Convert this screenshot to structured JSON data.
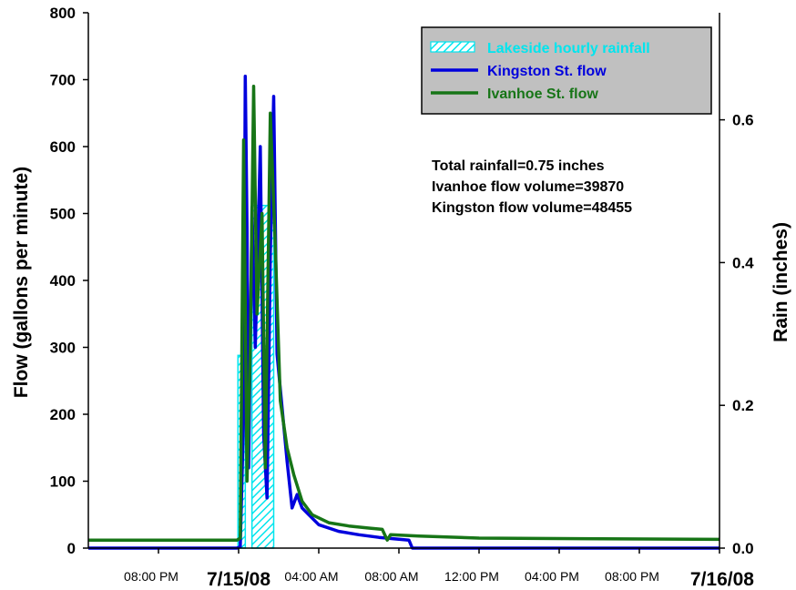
{
  "chart_data": {
    "type": "line",
    "title": "",
    "ylabel": "Flow (gallons per minute)",
    "y2label": "Rain (inches)",
    "ylim": [
      0,
      800
    ],
    "y2lim": [
      0,
      0.75
    ],
    "yticks": [
      "0",
      "100",
      "200",
      "300",
      "400",
      "500",
      "600",
      "700",
      "800"
    ],
    "y2ticks": [
      "0.0",
      "0.2",
      "0.4",
      "0.6"
    ],
    "xlim": [
      "2008-07-15T16:30",
      "2008-07-17T00:00"
    ],
    "xticks": [
      {
        "x": "2008-07-15T20:00",
        "label": "08:00 PM",
        "date": ""
      },
      {
        "x": "2008-07-16T00:00",
        "label": "",
        "date": "7/15/08"
      },
      {
        "x": "2008-07-16T04:00",
        "label": "04:00 AM",
        "date": ""
      },
      {
        "x": "2008-07-16T08:00",
        "label": "08:00 AM",
        "date": ""
      },
      {
        "x": "2008-07-16T12:00",
        "label": "12:00 PM",
        "date": ""
      },
      {
        "x": "2008-07-16T16:00",
        "label": "04:00 PM",
        "date": ""
      },
      {
        "x": "2008-07-16T20:00",
        "label": "08:00 PM",
        "date": ""
      },
      {
        "x": "2008-07-17T00:00",
        "label": "",
        "date": "7/16/08"
      }
    ],
    "legend": {
      "placement": "top-right",
      "background": "#c0c0c0",
      "entries": [
        {
          "name": "Lakeside hourly rainfall",
          "color": "#00e5ee",
          "kind": "hatched-bar"
        },
        {
          "name": "Kingston St. flow",
          "color": "#0000dd",
          "kind": "line"
        },
        {
          "name": "Ivanhoe St. flow",
          "color": "#177517",
          "kind": "line"
        }
      ]
    },
    "annotations": [
      "Total rainfall=0.75 inches",
      "Ivanhoe flow volume=39870",
      "Kingston flow volume=48455"
    ],
    "rainfall": {
      "name": "Lakeside hourly rainfall",
      "axis": "y2",
      "color": "#00e5ee",
      "bars": [
        {
          "start": "2008-07-15T23:58",
          "end": "2008-07-16T00:20",
          "value": 0.27
        },
        {
          "start": "2008-07-16T00:20",
          "end": "2008-07-16T00:40",
          "value": 0.0
        },
        {
          "start": "2008-07-16T00:40",
          "end": "2008-07-16T01:45",
          "value": 0.48
        }
      ]
    },
    "series": [
      {
        "name": "Kingston St. flow",
        "axis": "y",
        "color": "#0000dd",
        "points": [
          [
            "2008-07-15T16:30",
            0
          ],
          [
            "2008-07-15T23:55",
            0
          ],
          [
            "2008-07-16T00:05",
            2
          ],
          [
            "2008-07-16T00:15",
            200
          ],
          [
            "2008-07-16T00:20",
            705
          ],
          [
            "2008-07-16T00:25",
            480
          ],
          [
            "2008-07-16T00:30",
            120
          ],
          [
            "2008-07-16T00:40",
            510
          ],
          [
            "2008-07-16T00:50",
            300
          ],
          [
            "2008-07-16T01:05",
            600
          ],
          [
            "2008-07-16T01:15",
            170
          ],
          [
            "2008-07-16T01:25",
            75
          ],
          [
            "2008-07-16T01:35",
            440
          ],
          [
            "2008-07-16T01:45",
            675
          ],
          [
            "2008-07-16T01:55",
            290
          ],
          [
            "2008-07-16T02:10",
            210
          ],
          [
            "2008-07-16T02:25",
            130
          ],
          [
            "2008-07-16T02:40",
            60
          ],
          [
            "2008-07-16T02:55",
            80
          ],
          [
            "2008-07-16T03:10",
            60
          ],
          [
            "2008-07-16T03:30",
            50
          ],
          [
            "2008-07-16T04:00",
            35
          ],
          [
            "2008-07-16T05:00",
            25
          ],
          [
            "2008-07-16T06:00",
            20
          ],
          [
            "2008-07-16T07:00",
            16
          ],
          [
            "2008-07-16T08:30",
            12
          ],
          [
            "2008-07-16T08:40",
            0
          ],
          [
            "2008-07-17T00:00",
            0
          ]
        ]
      },
      {
        "name": "Ivanhoe St. flow",
        "axis": "y",
        "color": "#177517",
        "points": [
          [
            "2008-07-15T16:30",
            12
          ],
          [
            "2008-07-15T23:55",
            12
          ],
          [
            "2008-07-16T00:05",
            15
          ],
          [
            "2008-07-16T00:15",
            610
          ],
          [
            "2008-07-16T00:25",
            100
          ],
          [
            "2008-07-16T00:35",
            300
          ],
          [
            "2008-07-16T00:45",
            690
          ],
          [
            "2008-07-16T00:55",
            350
          ],
          [
            "2008-07-16T01:10",
            500
          ],
          [
            "2008-07-16T01:20",
            120
          ],
          [
            "2008-07-16T01:35",
            650
          ],
          [
            "2008-07-16T01:50",
            450
          ],
          [
            "2008-07-16T02:05",
            220
          ],
          [
            "2008-07-16T02:25",
            150
          ],
          [
            "2008-07-16T02:45",
            110
          ],
          [
            "2008-07-16T03:10",
            70
          ],
          [
            "2008-07-16T03:40",
            50
          ],
          [
            "2008-07-16T04:30",
            38
          ],
          [
            "2008-07-16T05:30",
            33
          ],
          [
            "2008-07-16T06:30",
            30
          ],
          [
            "2008-07-16T07:10",
            28
          ],
          [
            "2008-07-16T07:25",
            12
          ],
          [
            "2008-07-16T07:35",
            20
          ],
          [
            "2008-07-16T09:00",
            18
          ],
          [
            "2008-07-16T12:00",
            15
          ],
          [
            "2008-07-17T00:00",
            13
          ]
        ]
      }
    ]
  }
}
